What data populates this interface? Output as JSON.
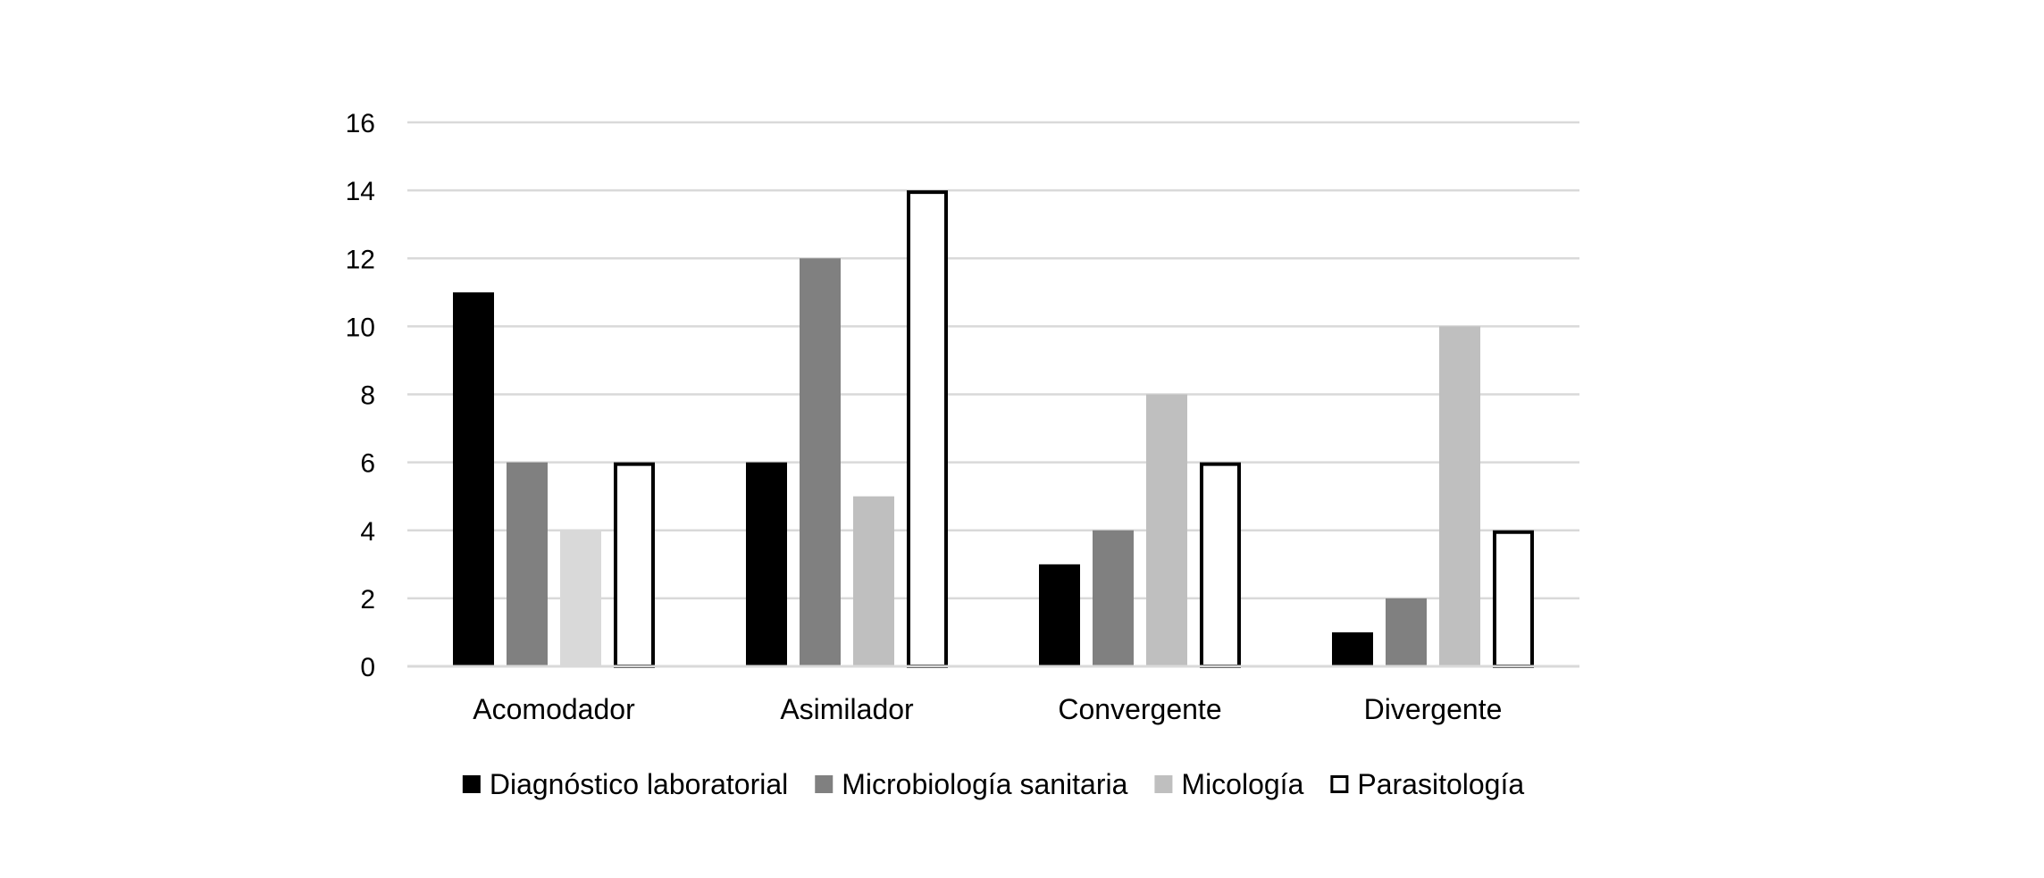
{
  "chart_data": {
    "type": "bar",
    "title": "",
    "xlabel": "",
    "ylabel": "",
    "categories": [
      "Acomodador",
      "Asimilador",
      "Convergente",
      "Divergente"
    ],
    "series": [
      {
        "name": "Diagnóstico laboratorial",
        "values": [
          11,
          6,
          3,
          1
        ],
        "color": "#000000",
        "outline": false
      },
      {
        "name": "Microbiología sanitaria",
        "values": [
          6,
          12,
          4,
          2
        ],
        "color": "#808080",
        "outline": false
      },
      {
        "name": "Micología",
        "values": [
          4,
          5,
          8,
          10
        ],
        "color": "#bfbfbf",
        "colors": [
          "#d9d9d9",
          "#bfbfbf",
          "#bfbfbf",
          "#bfbfbf"
        ],
        "outline": false
      },
      {
        "name": "Parasitología",
        "values": [
          6,
          14,
          6,
          4
        ],
        "color": "#ffffff",
        "outline": true
      }
    ],
    "ylim": [
      0,
      16
    ],
    "yticks": [
      0,
      2,
      4,
      6,
      8,
      10,
      12,
      14,
      16
    ],
    "grid": true,
    "legend_position": "bottom"
  }
}
